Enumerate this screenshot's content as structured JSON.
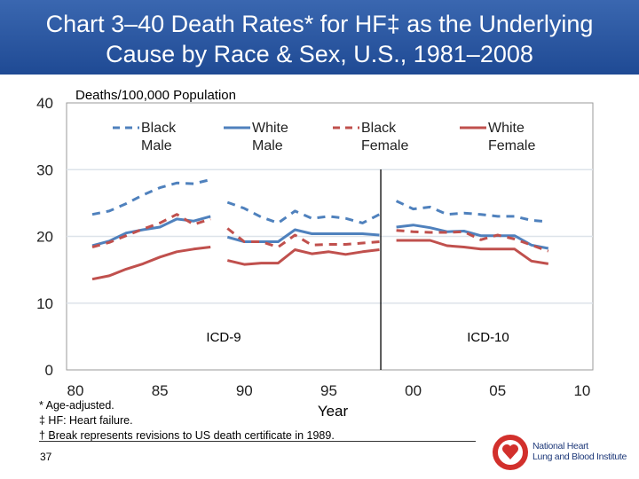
{
  "title": {
    "line1": "Chart 3–40 Death Rates* for HF‡ as the Underlying",
    "line2": "Cause by Race & Sex, U.S., 1981–2008"
  },
  "footnotes": {
    "age": "* Age-adjusted.",
    "hf": "‡ HF: Heart failure.",
    "break": "† Break represents revisions to US death certificate in 1989."
  },
  "page_number": "37",
  "logo": {
    "line1": "National Heart",
    "line2": "Lung and Blood Institute"
  },
  "chart_data": {
    "type": "line",
    "ylabel": "Deaths/100,000 Population",
    "xlabel": "Year",
    "ylim": [
      0,
      40
    ],
    "yticks": [
      "0",
      "10",
      "20",
      "30",
      "40"
    ],
    "xlim": [
      1980,
      2010
    ],
    "xticks": [
      "80",
      "85",
      "90",
      "95",
      "00",
      "05",
      "10"
    ],
    "grid": true,
    "legend_placement": "top",
    "annotations": {
      "icd9": "ICD-9",
      "icd10": "ICD-10"
    },
    "break_year": 1998.5,
    "segments": [
      [
        1981,
        1988
      ],
      [
        1989,
        1998
      ],
      [
        1999,
        2008
      ]
    ],
    "series": [
      {
        "name": "Black Male",
        "legend": [
          "Black",
          "Male"
        ],
        "color": "#4f81bd",
        "dashed": true,
        "values": [
          23.3,
          23.8,
          24.9,
          26.2,
          27.3,
          28.0,
          27.9,
          28.5,
          25.1,
          24.2,
          22.9,
          22.0,
          23.8,
          22.7,
          23.0,
          22.7,
          22.0,
          23.3,
          25.3,
          24.1,
          24.4,
          23.3,
          23.5,
          23.3,
          23.0,
          23.0,
          22.4,
          22.2
        ]
      },
      {
        "name": "White Male",
        "legend": [
          "White",
          "Male"
        ],
        "color": "#4f81bd",
        "dashed": false,
        "values": [
          18.6,
          19.3,
          20.5,
          21.0,
          21.4,
          22.6,
          22.3,
          23.0,
          19.9,
          19.2,
          19.2,
          19.2,
          21.0,
          20.4,
          20.4,
          20.4,
          20.4,
          20.2,
          21.4,
          21.7,
          21.3,
          20.7,
          20.8,
          20.1,
          20.1,
          20.1,
          18.7,
          18.2
        ]
      },
      {
        "name": "Black Female",
        "legend": [
          "Black",
          "Female"
        ],
        "color": "#c0504d",
        "dashed": true,
        "values": [
          18.4,
          19.1,
          20.1,
          21.1,
          22.0,
          23.3,
          21.8,
          22.6,
          21.2,
          19.2,
          19.2,
          18.4,
          20.2,
          18.7,
          18.8,
          18.8,
          19.0,
          19.2,
          20.9,
          20.7,
          20.6,
          20.6,
          20.7,
          19.5,
          20.2,
          19.6,
          18.7,
          17.8
        ]
      },
      {
        "name": "White Female",
        "legend": [
          "White",
          "Female"
        ],
        "color": "#c0504d",
        "dashed": false,
        "values": [
          13.6,
          14.1,
          15.1,
          15.9,
          16.9,
          17.7,
          18.1,
          18.4,
          16.4,
          15.8,
          16.0,
          16.0,
          18.0,
          17.4,
          17.7,
          17.3,
          17.7,
          18.0,
          19.4,
          19.4,
          19.4,
          18.6,
          18.4,
          18.1,
          18.1,
          18.1,
          16.3,
          15.9
        ]
      }
    ]
  }
}
